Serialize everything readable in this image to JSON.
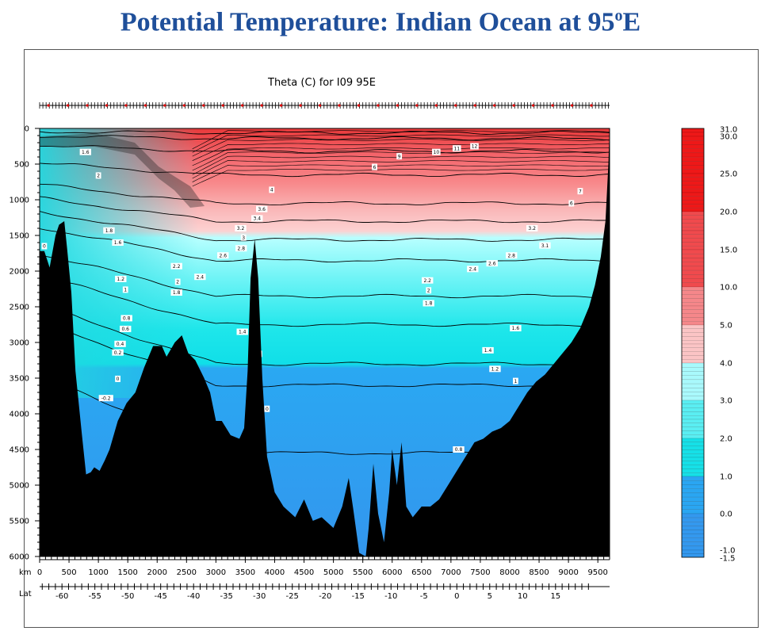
{
  "page": {
    "title_main": "Potential Temperature: Indian Ocean at 95",
    "title_sup": "o",
    "title_tail": "E"
  },
  "colors": {
    "land": "#000000",
    "title": "#1f4f9a"
  },
  "chart_data": {
    "type": "heatmap",
    "title": "Theta (C) for I09 95E",
    "xlabel": "km",
    "x2label": "Lat",
    "xlim": [
      0,
      9700
    ],
    "ylim": [
      6000,
      0
    ],
    "x_ticks": [
      0,
      500,
      1000,
      1500,
      2000,
      2500,
      3000,
      3500,
      4000,
      4500,
      5000,
      5500,
      6000,
      6500,
      7000,
      7500,
      8000,
      8500,
      9000,
      9500
    ],
    "y_ticks": [
      0,
      500,
      1000,
      1500,
      2000,
      2500,
      3000,
      3500,
      4000,
      4500,
      5000,
      5500,
      6000
    ],
    "lat_labels": [
      {
        "lat": -60,
        "km": 380,
        "label": "-60"
      },
      {
        "lat": -55,
        "km": 940,
        "label": "-55"
      },
      {
        "lat": -50,
        "km": 1500,
        "label": "-50"
      },
      {
        "lat": -45,
        "km": 2060,
        "label": "-45"
      },
      {
        "lat": -40,
        "km": 2620,
        "label": "-40"
      },
      {
        "lat": -35,
        "km": 3180,
        "label": "-35"
      },
      {
        "lat": -30,
        "km": 3740,
        "label": "-30"
      },
      {
        "lat": -25,
        "km": 4300,
        "label": "-25"
      },
      {
        "lat": -20,
        "km": 4860,
        "label": "-20"
      },
      {
        "lat": -15,
        "km": 5420,
        "label": "-15"
      },
      {
        "lat": -10,
        "km": 5980,
        "label": "-10"
      },
      {
        "lat": -5,
        "km": 6540,
        "label": "-5"
      },
      {
        "lat": 0,
        "km": 7100,
        "label": "0"
      },
      {
        "lat": 5,
        "km": 7660,
        "label": "5"
      },
      {
        "lat": 10,
        "km": 8220,
        "label": "10"
      },
      {
        "lat": 15,
        "km": 8780,
        "label": "15"
      }
    ],
    "colorbar_labels": [
      "31.0",
      "30.0",
      "25.0",
      "20.0",
      "15.0",
      "10.0",
      "5.0",
      "4.0",
      "3.0",
      "2.0",
      "1.0",
      "0.0",
      "-1.0",
      "-1.5"
    ],
    "levels": [
      31,
      30,
      25,
      20,
      15,
      10,
      5,
      4,
      3,
      2,
      1,
      0,
      -1,
      -1.5
    ],
    "isotherms": [
      {
        "value": 25,
        "depth": 60
      },
      {
        "value": 20,
        "depth": 140
      },
      {
        "value": 15,
        "depth": 320
      },
      {
        "value": 10,
        "depth": 650
      },
      {
        "value": 7,
        "depth": 1050
      },
      {
        "value": 5,
        "depth": 1300
      },
      {
        "value": 4,
        "depth": 1560
      },
      {
        "value": 3,
        "depth": 1850
      },
      {
        "value": 2,
        "depth": 2350
      },
      {
        "value": 1.6,
        "depth": 2750
      },
      {
        "value": 1.2,
        "depth": 3300
      },
      {
        "value": 1,
        "depth": 3600
      },
      {
        "value": 0.8,
        "depth": 4550
      }
    ],
    "contour_labels": [
      {
        "t": "0",
        "km": 80,
        "d": 1650
      },
      {
        "t": "1.6",
        "km": 780,
        "d": 330
      },
      {
        "t": "2",
        "km": 1000,
        "d": 660
      },
      {
        "t": "1.8",
        "km": 1180,
        "d": 1430
      },
      {
        "t": "1.6",
        "km": 1330,
        "d": 1600
      },
      {
        "t": "1.2",
        "km": 1380,
        "d": 2110
      },
      {
        "t": "1",
        "km": 1460,
        "d": 2260
      },
      {
        "t": "0.8",
        "km": 1480,
        "d": 2660
      },
      {
        "t": "0.6",
        "km": 1460,
        "d": 2810
      },
      {
        "t": "0.4",
        "km": 1370,
        "d": 3020
      },
      {
        "t": "0.2",
        "km": 1330,
        "d": 3140
      },
      {
        "t": "0",
        "km": 1330,
        "d": 3510
      },
      {
        "t": "-0.2",
        "km": 1130,
        "d": 3780
      },
      {
        "t": "2.2",
        "km": 2330,
        "d": 1930
      },
      {
        "t": "2",
        "km": 2350,
        "d": 2150
      },
      {
        "t": "1.8",
        "km": 2330,
        "d": 2300
      },
      {
        "t": "2.4",
        "km": 2730,
        "d": 2080
      },
      {
        "t": "2.6",
        "km": 3120,
        "d": 1780
      },
      {
        "t": "3.2",
        "km": 3420,
        "d": 1400
      },
      {
        "t": "3",
        "km": 3470,
        "d": 1530
      },
      {
        "t": "2.8",
        "km": 3430,
        "d": 1680
      },
      {
        "t": "3.6",
        "km": 3780,
        "d": 1130
      },
      {
        "t": "3.4",
        "km": 3700,
        "d": 1260
      },
      {
        "t": "1.4",
        "km": 3450,
        "d": 2850
      },
      {
        "t": "1.2",
        "km": 3690,
        "d": 3160
      },
      {
        "t": "0",
        "km": 3870,
        "d": 3930
      },
      {
        "t": "4",
        "km": 3950,
        "d": 860
      },
      {
        "t": "6",
        "km": 5700,
        "d": 540
      },
      {
        "t": "9",
        "km": 6120,
        "d": 390
      },
      {
        "t": "10",
        "km": 6750,
        "d": 330
      },
      {
        "t": "11",
        "km": 7100,
        "d": 280
      },
      {
        "t": "12",
        "km": 7400,
        "d": 250
      },
      {
        "t": "7",
        "km": 9200,
        "d": 880
      },
      {
        "t": "6",
        "km": 9050,
        "d": 1050
      },
      {
        "t": "2.2",
        "km": 6600,
        "d": 2130
      },
      {
        "t": "2",
        "km": 6620,
        "d": 2270
      },
      {
        "t": "1.8",
        "km": 6620,
        "d": 2450
      },
      {
        "t": "2.4",
        "km": 7370,
        "d": 1970
      },
      {
        "t": "2.6",
        "km": 7700,
        "d": 1890
      },
      {
        "t": "2.8",
        "km": 8030,
        "d": 1780
      },
      {
        "t": "3.2",
        "km": 8380,
        "d": 1400
      },
      {
        "t": "3.1",
        "km": 8600,
        "d": 1640
      },
      {
        "t": "1.6",
        "km": 8100,
        "d": 2800
      },
      {
        "t": "1.4",
        "km": 7630,
        "d": 3110
      },
      {
        "t": "1.2",
        "km": 7750,
        "d": 3370
      },
      {
        "t": "1",
        "km": 8100,
        "d": 3540
      },
      {
        "t": "0.8",
        "km": 7130,
        "d": 4500
      }
    ],
    "bathymetry": [
      {
        "km": 0,
        "d": 1720
      },
      {
        "km": 80,
        "d": 1720
      },
      {
        "km": 170,
        "d": 1950
      },
      {
        "km": 270,
        "d": 1500
      },
      {
        "km": 330,
        "d": 1350
      },
      {
        "km": 420,
        "d": 1300
      },
      {
        "km": 470,
        "d": 1700
      },
      {
        "km": 540,
        "d": 2300
      },
      {
        "km": 610,
        "d": 3400
      },
      {
        "km": 720,
        "d": 4300
      },
      {
        "km": 790,
        "d": 4850
      },
      {
        "km": 870,
        "d": 4820
      },
      {
        "km": 930,
        "d": 4750
      },
      {
        "km": 1020,
        "d": 4800
      },
      {
        "km": 1110,
        "d": 4650
      },
      {
        "km": 1190,
        "d": 4500
      },
      {
        "km": 1330,
        "d": 4100
      },
      {
        "km": 1480,
        "d": 3850
      },
      {
        "km": 1630,
        "d": 3700
      },
      {
        "km": 1780,
        "d": 3350
      },
      {
        "km": 1930,
        "d": 3050
      },
      {
        "km": 2080,
        "d": 3050
      },
      {
        "km": 2160,
        "d": 3200
      },
      {
        "km": 2300,
        "d": 3000
      },
      {
        "km": 2420,
        "d": 2900
      },
      {
        "km": 2530,
        "d": 3150
      },
      {
        "km": 2650,
        "d": 3250
      },
      {
        "km": 2800,
        "d": 3500
      },
      {
        "km": 2900,
        "d": 3700
      },
      {
        "km": 3000,
        "d": 4100
      },
      {
        "km": 3100,
        "d": 4100
      },
      {
        "km": 3250,
        "d": 4300
      },
      {
        "km": 3400,
        "d": 4350
      },
      {
        "km": 3480,
        "d": 4200
      },
      {
        "km": 3540,
        "d": 3400
      },
      {
        "km": 3590,
        "d": 2100
      },
      {
        "km": 3660,
        "d": 1550
      },
      {
        "km": 3720,
        "d": 2100
      },
      {
        "km": 3790,
        "d": 3500
      },
      {
        "km": 3870,
        "d": 4600
      },
      {
        "km": 4000,
        "d": 5100
      },
      {
        "km": 4150,
        "d": 5300
      },
      {
        "km": 4350,
        "d": 5450
      },
      {
        "km": 4500,
        "d": 5200
      },
      {
        "km": 4650,
        "d": 5500
      },
      {
        "km": 4800,
        "d": 5450
      },
      {
        "km": 5000,
        "d": 5600
      },
      {
        "km": 5150,
        "d": 5300
      },
      {
        "km": 5260,
        "d": 4900
      },
      {
        "km": 5340,
        "d": 5350
      },
      {
        "km": 5440,
        "d": 5950
      },
      {
        "km": 5550,
        "d": 6000
      },
      {
        "km": 5600,
        "d": 5600
      },
      {
        "km": 5680,
        "d": 4700
      },
      {
        "km": 5760,
        "d": 5400
      },
      {
        "km": 5860,
        "d": 5800
      },
      {
        "km": 5950,
        "d": 5100
      },
      {
        "km": 6000,
        "d": 4500
      },
      {
        "km": 6080,
        "d": 5000
      },
      {
        "km": 6160,
        "d": 4400
      },
      {
        "km": 6240,
        "d": 5300
      },
      {
        "km": 6350,
        "d": 5450
      },
      {
        "km": 6500,
        "d": 5300
      },
      {
        "km": 6650,
        "d": 5300
      },
      {
        "km": 6800,
        "d": 5200
      },
      {
        "km": 6950,
        "d": 5000
      },
      {
        "km": 7100,
        "d": 4800
      },
      {
        "km": 7250,
        "d": 4600
      },
      {
        "km": 7400,
        "d": 4400
      },
      {
        "km": 7550,
        "d": 4350
      },
      {
        "km": 7700,
        "d": 4250
      },
      {
        "km": 7850,
        "d": 4200
      },
      {
        "km": 8000,
        "d": 4100
      },
      {
        "km": 8150,
        "d": 3900
      },
      {
        "km": 8300,
        "d": 3700
      },
      {
        "km": 8450,
        "d": 3550
      },
      {
        "km": 8600,
        "d": 3450
      },
      {
        "km": 8750,
        "d": 3300
      },
      {
        "km": 8900,
        "d": 3150
      },
      {
        "km": 9050,
        "d": 3000
      },
      {
        "km": 9200,
        "d": 2800
      },
      {
        "km": 9350,
        "d": 2500
      },
      {
        "km": 9450,
        "d": 2200
      },
      {
        "km": 9550,
        "d": 1800
      },
      {
        "km": 9630,
        "d": 1300
      },
      {
        "km": 9680,
        "d": 500
      },
      {
        "km": 9700,
        "d": 0
      }
    ]
  }
}
